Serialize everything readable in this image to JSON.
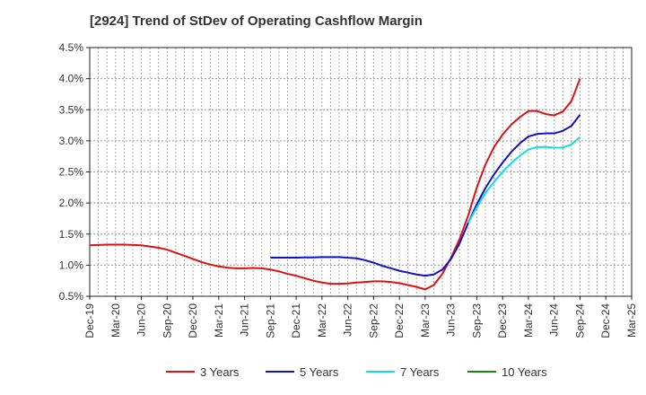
{
  "chart_data": {
    "type": "line",
    "title": "[2924]  Trend of StDev of Operating Cashflow Margin",
    "xlabel": "",
    "ylabel": "",
    "x_ticks": [
      "Dec-19",
      "Mar-20",
      "Jun-20",
      "Sep-20",
      "Dec-20",
      "Mar-21",
      "Jun-21",
      "Sep-21",
      "Dec-21",
      "Mar-22",
      "Jun-22",
      "Sep-22",
      "Dec-22",
      "Mar-23",
      "Jun-23",
      "Sep-23",
      "Dec-23",
      "Mar-24",
      "Jun-24",
      "Sep-24",
      "Dec-24",
      "Mar-25"
    ],
    "y_ticks": [
      "0.5%",
      "1.0%",
      "1.5%",
      "2.0%",
      "2.5%",
      "3.0%",
      "3.5%",
      "4.0%",
      "4.5%"
    ],
    "ylim": [
      0.5,
      4.5
    ],
    "y_unit": "%",
    "grid": true,
    "legend_position": "bottom",
    "series": [
      {
        "name": "3 Years",
        "color": "#dd1111",
        "points": [
          [
            "Dec-19",
            1.32
          ],
          [
            "Jan-20",
            1.325
          ],
          [
            "Feb-20",
            1.33
          ],
          [
            "Mar-20",
            1.33
          ],
          [
            "Apr-20",
            1.33
          ],
          [
            "May-20",
            1.325
          ],
          [
            "Jun-20",
            1.32
          ],
          [
            "Jul-20",
            1.3
          ],
          [
            "Aug-20",
            1.28
          ],
          [
            "Sep-20",
            1.25
          ],
          [
            "Oct-20",
            1.2
          ],
          [
            "Nov-20",
            1.15
          ],
          [
            "Dec-20",
            1.1
          ],
          [
            "Jan-21",
            1.05
          ],
          [
            "Feb-21",
            1.01
          ],
          [
            "Mar-21",
            0.98
          ],
          [
            "Apr-21",
            0.96
          ],
          [
            "May-21",
            0.95
          ],
          [
            "Jun-21",
            0.95
          ],
          [
            "Jul-21",
            0.955
          ],
          [
            "Aug-21",
            0.95
          ],
          [
            "Sep-21",
            0.93
          ],
          [
            "Oct-21",
            0.9
          ],
          [
            "Nov-21",
            0.86
          ],
          [
            "Dec-21",
            0.83
          ],
          [
            "Jan-22",
            0.79
          ],
          [
            "Feb-22",
            0.75
          ],
          [
            "Mar-22",
            0.72
          ],
          [
            "Apr-22",
            0.7
          ],
          [
            "May-22",
            0.7
          ],
          [
            "Jun-22",
            0.705
          ],
          [
            "Jul-22",
            0.72
          ],
          [
            "Aug-22",
            0.73
          ],
          [
            "Sep-22",
            0.74
          ],
          [
            "Oct-22",
            0.74
          ],
          [
            "Nov-22",
            0.73
          ],
          [
            "Dec-22",
            0.71
          ],
          [
            "Jan-23",
            0.68
          ],
          [
            "Feb-23",
            0.65
          ],
          [
            "Mar-23",
            0.61
          ],
          [
            "Apr-23",
            0.68
          ],
          [
            "May-23",
            0.86
          ],
          [
            "Jun-23",
            1.12
          ],
          [
            "Jul-23",
            1.42
          ],
          [
            "Aug-23",
            1.8
          ],
          [
            "Sep-23",
            2.25
          ],
          [
            "Oct-23",
            2.62
          ],
          [
            "Nov-23",
            2.9
          ],
          [
            "Dec-23",
            3.1
          ],
          [
            "Jan-24",
            3.26
          ],
          [
            "Feb-24",
            3.38
          ],
          [
            "Mar-24",
            3.48
          ],
          [
            "Apr-24",
            3.48
          ],
          [
            "May-24",
            3.43
          ],
          [
            "Jun-24",
            3.41
          ],
          [
            "Jul-24",
            3.47
          ],
          [
            "Aug-24",
            3.64
          ],
          [
            "Sep-24",
            4.0
          ]
        ]
      },
      {
        "name": "5 Years",
        "color": "#1111cc",
        "points": [
          [
            "Sep-21",
            1.12
          ],
          [
            "Oct-21",
            1.12
          ],
          [
            "Nov-21",
            1.12
          ],
          [
            "Dec-21",
            1.12
          ],
          [
            "Jan-22",
            1.125
          ],
          [
            "Feb-22",
            1.125
          ],
          [
            "Mar-22",
            1.13
          ],
          [
            "Apr-22",
            1.13
          ],
          [
            "May-22",
            1.13
          ],
          [
            "Jun-22",
            1.12
          ],
          [
            "Jul-22",
            1.11
          ],
          [
            "Aug-22",
            1.08
          ],
          [
            "Sep-22",
            1.04
          ],
          [
            "Oct-22",
            0.99
          ],
          [
            "Nov-22",
            0.95
          ],
          [
            "Dec-22",
            0.91
          ],
          [
            "Jan-23",
            0.88
          ],
          [
            "Feb-23",
            0.85
          ],
          [
            "Mar-23",
            0.83
          ],
          [
            "Apr-23",
            0.85
          ],
          [
            "May-23",
            0.93
          ],
          [
            "Jun-23",
            1.1
          ],
          [
            "Jul-23",
            1.35
          ],
          [
            "Aug-23",
            1.68
          ],
          [
            "Sep-23",
            1.98
          ],
          [
            "Oct-23",
            2.24
          ],
          [
            "Nov-23",
            2.46
          ],
          [
            "Dec-23",
            2.65
          ],
          [
            "Jan-24",
            2.82
          ],
          [
            "Feb-24",
            2.96
          ],
          [
            "Mar-24",
            3.07
          ],
          [
            "Apr-24",
            3.11
          ],
          [
            "May-24",
            3.12
          ],
          [
            "Jun-24",
            3.12
          ],
          [
            "Jul-24",
            3.16
          ],
          [
            "Aug-24",
            3.24
          ],
          [
            "Sep-24",
            3.42
          ]
        ]
      },
      {
        "name": "7 Years",
        "color": "#11dddd",
        "points": [
          [
            "Aug-23",
            1.68
          ],
          [
            "Sep-23",
            1.93
          ],
          [
            "Oct-23",
            2.16
          ],
          [
            "Nov-23",
            2.34
          ],
          [
            "Dec-23",
            2.5
          ],
          [
            "Jan-24",
            2.64
          ],
          [
            "Feb-24",
            2.76
          ],
          [
            "Mar-24",
            2.86
          ],
          [
            "Apr-24",
            2.9
          ],
          [
            "May-24",
            2.9
          ],
          [
            "Jun-24",
            2.89
          ],
          [
            "Jul-24",
            2.89
          ],
          [
            "Aug-24",
            2.94
          ],
          [
            "Sep-24",
            3.06
          ]
        ]
      },
      {
        "name": "10 Years",
        "color": "#118811",
        "points": []
      }
    ]
  }
}
